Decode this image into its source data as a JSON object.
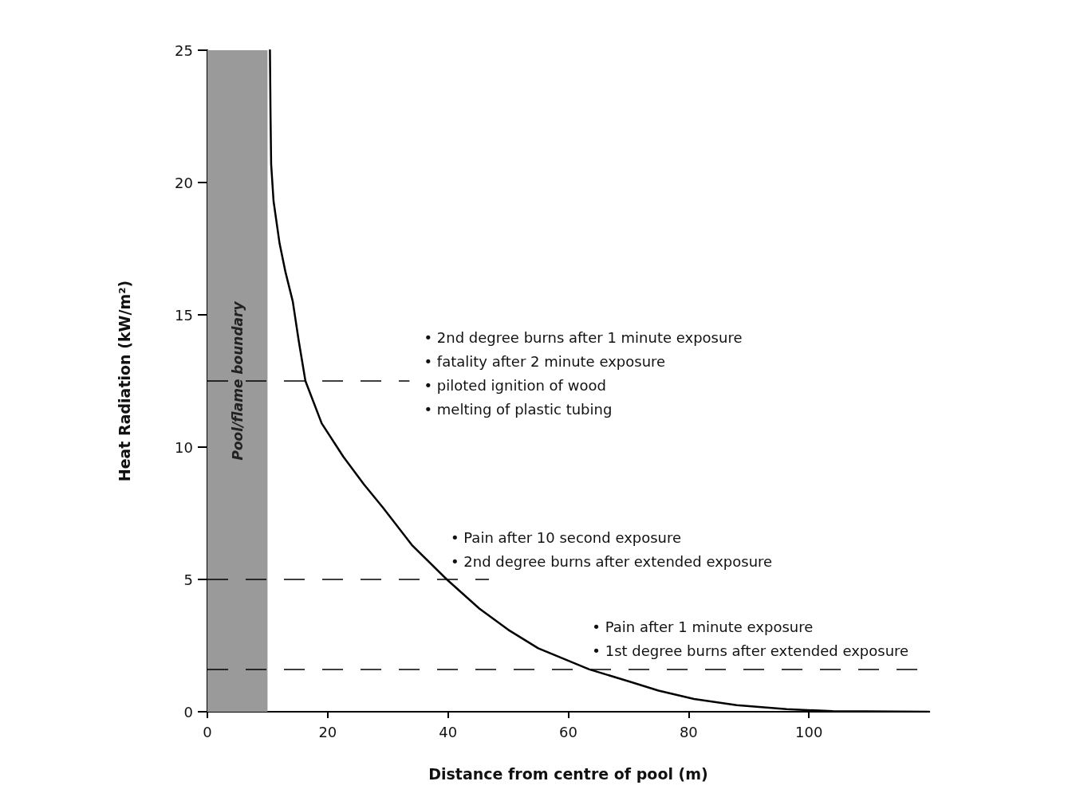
{
  "chart_data": {
    "type": "line",
    "xlabel": "Distance from centre of pool (m)",
    "ylabel": "Heat Radiation (kW/m²)",
    "x": [
      10.4,
      10.5,
      10.6,
      11,
      12,
      13,
      14.2,
      15.2,
      16.3,
      19,
      22.6,
      26,
      29.2,
      34,
      39.8,
      45.2,
      50,
      55,
      63.5,
      70,
      75,
      80.9,
      88,
      96.3,
      104,
      120
    ],
    "series": [
      {
        "color": "#000000",
        "values": [
          25,
          22.5,
          20.7,
          19.3,
          17.7,
          16.6,
          15.5,
          14,
          12.5,
          10.9,
          9.64,
          8.6,
          7.71,
          6.3,
          5,
          3.9,
          3.1,
          2.4,
          1.6,
          1.15,
          0.8,
          0.48,
          0.25,
          0.1,
          0.02,
          0
        ]
      }
    ],
    "xlim": [
      0,
      120
    ],
    "xticks": [
      0,
      20,
      40,
      60,
      80,
      100
    ],
    "ylim": [
      0,
      25
    ],
    "yticks": [
      0,
      5,
      10,
      15,
      20,
      25
    ],
    "grid": false,
    "marker": "none",
    "line_style": "solid",
    "ref_lines": [
      {
        "axis": "y",
        "value": 12.5,
        "color": "#000000",
        "line_style": "dashed",
        "label": "• 2nd degree burns after 1 minute exposure\n• fatality after 2 minute exposure\n• piloted ignition of wood\n• melting of plastic tubing"
      },
      {
        "axis": "y",
        "value": 5,
        "color": "#000000",
        "line_style": "dashed",
        "label": "• Pain after 10 second exposure\n• 2nd degree burns after extended exposure"
      },
      {
        "axis": "y",
        "value": 1.6,
        "color": "#000000",
        "line_style": "dashed",
        "label": "• Pain after 1 minute exposure\n• 1st degree burns after extended exposure"
      }
    ],
    "bands": [
      {
        "axis": "x",
        "from": 0,
        "to": 10,
        "label": "Pool/flame boundary",
        "color": "#9a9a9a"
      }
    ]
  }
}
